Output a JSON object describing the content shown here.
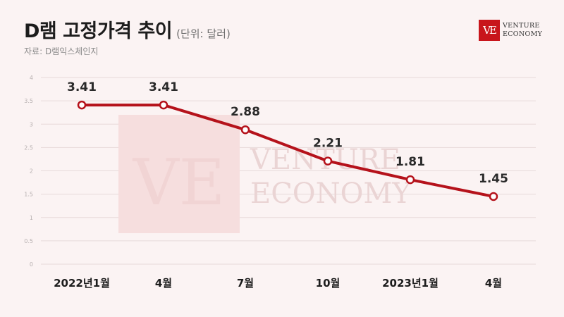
{
  "header": {
    "title": "D램 고정가격 추이",
    "unit": "(단위: 달러)",
    "source": "자료: D램익스체인지"
  },
  "logo": {
    "monogram": "VE",
    "line1": "VENTURE",
    "line2": "ECONOMY"
  },
  "watermark": {
    "monogram": "VE",
    "line1": "VENTURE",
    "line2": "ECONOMY"
  },
  "colors": {
    "line": "#b5121b",
    "marker_fill": "#ffffff",
    "grid": "#e7dada",
    "background": "#fbf3f3"
  },
  "chart_data": {
    "type": "line",
    "categories": [
      "2022년1월",
      "4월",
      "7월",
      "10월",
      "2023년1월",
      "4월"
    ],
    "values": [
      3.41,
      3.41,
      2.88,
      2.21,
      1.81,
      1.45
    ],
    "data_labels": [
      "3.41",
      "3.41",
      "2.88",
      "2.21",
      "1.81",
      "1.45"
    ],
    "y_ticks": [
      "0",
      "0.5",
      "1",
      "1.5",
      "2",
      "2.5",
      "3",
      "3.5",
      "4"
    ],
    "ylim": [
      0,
      4
    ],
    "grid": true,
    "legend": "none",
    "title": "D램 고정가격 추이",
    "xlabel": "",
    "ylabel": ""
  }
}
